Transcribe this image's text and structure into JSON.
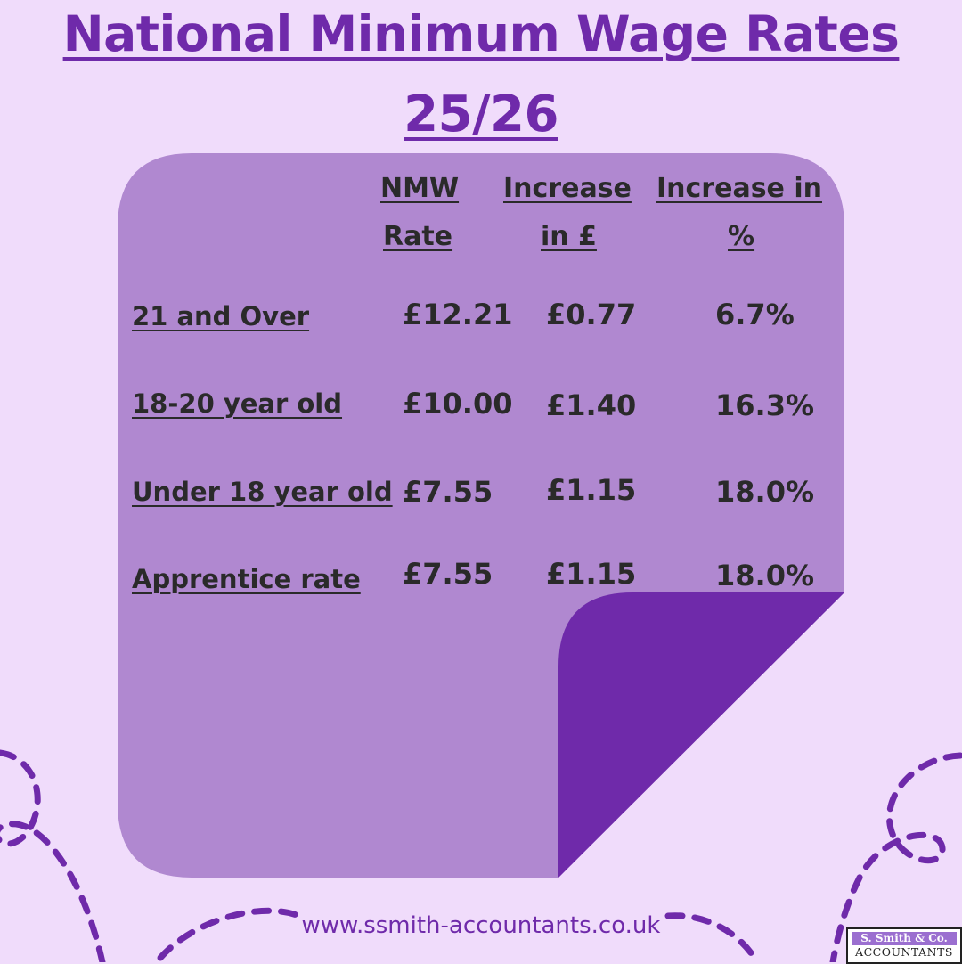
{
  "title": {
    "line1": "National Minimum Wage Rates",
    "line2": "25/26"
  },
  "table": {
    "headers": {
      "rate": [
        "NMW",
        "Rate"
      ],
      "increase_gbp": [
        "Increase",
        "in £"
      ],
      "increase_pct": [
        "Increase in",
        "%"
      ]
    },
    "rows": [
      {
        "label": "21 and Over",
        "rate": "£12.21",
        "increase_gbp": "£0.77",
        "increase_pct": "6.7%"
      },
      {
        "label": "18-20 year old",
        "rate": "£10.00",
        "increase_gbp": "£1.40",
        "increase_pct": "16.3%"
      },
      {
        "label": "Under 18 year old",
        "rate": "£7.55",
        "increase_gbp": "£1.15",
        "increase_pct": "18.0%"
      },
      {
        "label": "Apprentice rate",
        "rate": "£7.55",
        "increase_gbp": "£1.15",
        "increase_pct": "18.0%"
      }
    ]
  },
  "footer": {
    "url": "www.ssmith-accountants.co.uk",
    "logo": {
      "top": "S. Smith & Co.",
      "bottom": "ACCOUNTANTS"
    }
  },
  "colors": {
    "background": "#f0dcfb",
    "note": "#b088d0",
    "fold": "#6f2aaa",
    "text": "#2a2a2a",
    "accent": "#6f2aaa"
  }
}
